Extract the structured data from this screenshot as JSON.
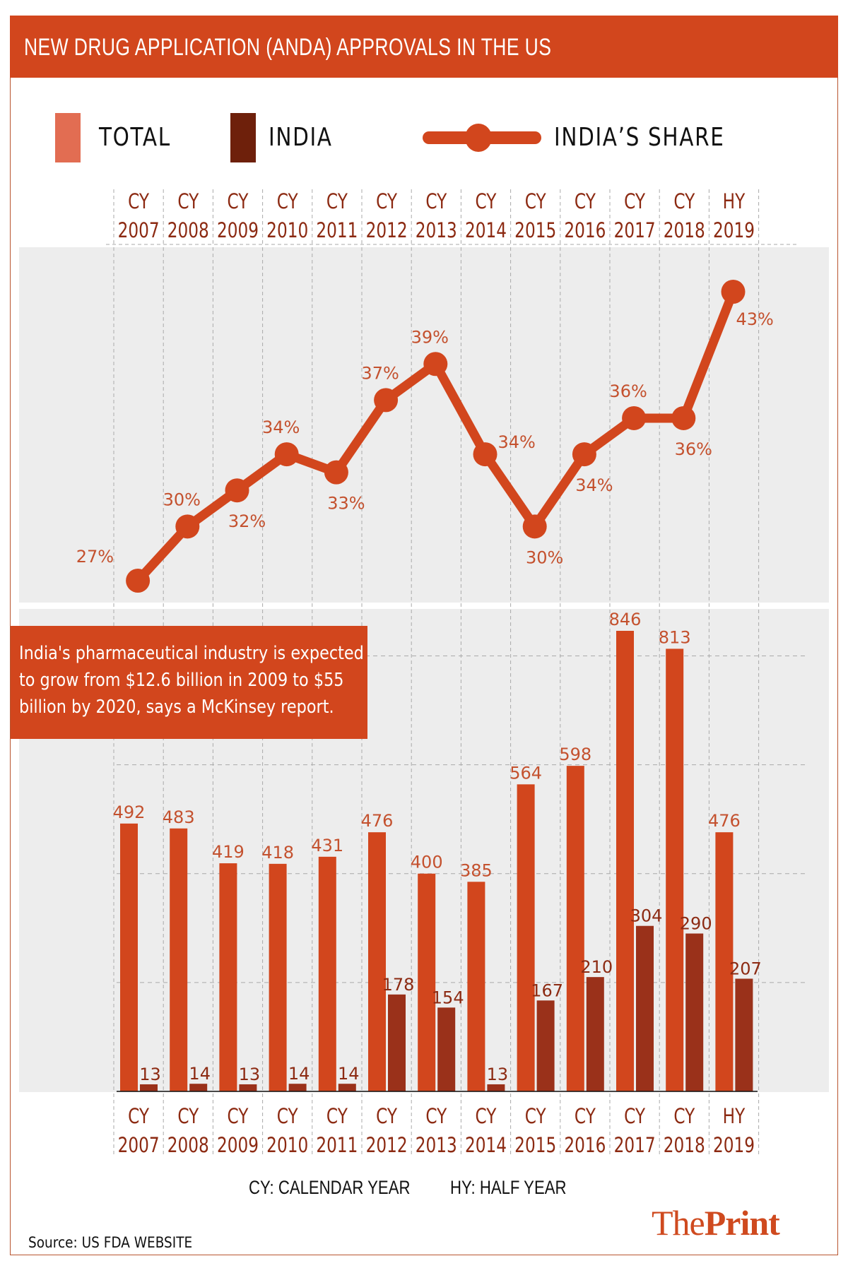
{
  "header": {
    "title": "NEW DRUG APPLICATION (ANDA) APPROVALS IN THE US"
  },
  "legend": {
    "items": [
      {
        "label": "TOTAL",
        "color": "#e26d52",
        "kind": "bar"
      },
      {
        "label": "INDIA",
        "color": "#6e200b",
        "kind": "bar"
      },
      {
        "label": "INDIA’S SHARE",
        "color": "#d2461d",
        "kind": "line"
      }
    ]
  },
  "callout": {
    "lines": [
      "India's pharmaceutical industry is expected",
      "to grow from $12.6 billion in 2009 to $55",
      "billion by 2020, says a McKinsey report."
    ]
  },
  "footnotes": {
    "cy": "CY: CALENDAR YEAR",
    "hy": "HY: HALF YEAR"
  },
  "source": "Source: US FDA WEBSITE",
  "logo": {
    "light": "The",
    "bold": "Print"
  },
  "colors": {
    "accent": "#d2461d",
    "india_bar": "#9a311a",
    "label_dark": "#8c2a12",
    "panel_bg": "#ededed"
  },
  "chart_data": [
    {
      "type": "line",
      "title": "India's share of ANDA approvals",
      "categories": [
        [
          "CY",
          "2007"
        ],
        [
          "CY",
          "2008"
        ],
        [
          "CY",
          "2009"
        ],
        [
          "CY",
          "2010"
        ],
        [
          "CY",
          "2011"
        ],
        [
          "CY",
          "2012"
        ],
        [
          "CY",
          "2013"
        ],
        [
          "CY",
          "2014"
        ],
        [
          "CY",
          "2015"
        ],
        [
          "CY",
          "2016"
        ],
        [
          "CY",
          "2017"
        ],
        [
          "CY",
          "2018"
        ],
        [
          "HY",
          "2019"
        ]
      ],
      "series": [
        {
          "name": "INDIA’S SHARE",
          "values": [
            27,
            30,
            32,
            34,
            33,
            37,
            39,
            34,
            30,
            34,
            36,
            36,
            43
          ],
          "labels": [
            "27%",
            "30%",
            "32%",
            "34%",
            "33%",
            "37%",
            "39%",
            "34%",
            "30%",
            "34%",
            "36%",
            "36%",
            "43%"
          ],
          "label_positions": [
            "left",
            "above",
            "below",
            "above",
            "below",
            "above",
            "above",
            "right",
            "below",
            "below",
            "above",
            "below",
            "right"
          ]
        }
      ],
      "ylim": [
        26,
        44
      ],
      "grid": "vertical-dashed",
      "xlabel": "",
      "ylabel": ""
    },
    {
      "type": "bar",
      "title": "ANDA approvals: Total vs India",
      "categories": [
        [
          "CY",
          "2007"
        ],
        [
          "CY",
          "2008"
        ],
        [
          "CY",
          "2009"
        ],
        [
          "CY",
          "2010"
        ],
        [
          "CY",
          "2011"
        ],
        [
          "CY",
          "2012"
        ],
        [
          "CY",
          "2013"
        ],
        [
          "CY",
          "2014"
        ],
        [
          "CY",
          "2015"
        ],
        [
          "CY",
          "2016"
        ],
        [
          "CY",
          "2017"
        ],
        [
          "CY",
          "2018"
        ],
        [
          "HY",
          "2019"
        ]
      ],
      "series": [
        {
          "name": "TOTAL",
          "values": [
            492,
            483,
            419,
            418,
            431,
            476,
            400,
            385,
            564,
            598,
            846,
            813,
            476
          ]
        },
        {
          "name": "INDIA",
          "values": [
            13,
            14,
            13,
            14,
            14,
            178,
            154,
            13,
            167,
            210,
            304,
            290,
            207
          ]
        }
      ],
      "ylim": [
        0,
        900
      ],
      "grid": "dashed",
      "xlabel": "",
      "ylabel": ""
    }
  ]
}
